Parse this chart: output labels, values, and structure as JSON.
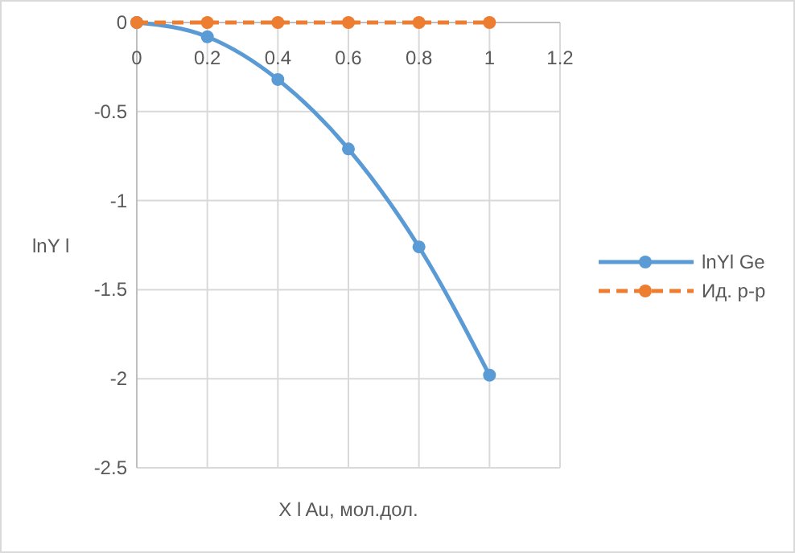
{
  "chart_data": {
    "type": "line",
    "xlabel": "X l Au, мол.дол.",
    "ylabel": "lnY l",
    "x": [
      0,
      0.2,
      0.4,
      0.6,
      0.8,
      1
    ],
    "series": [
      {
        "name": "lnYl Ge",
        "color": "#5b9bd5",
        "values": [
          0,
          -0.08,
          -0.32,
          -0.71,
          -1.26,
          -1.98
        ],
        "line_style": "solid"
      },
      {
        "name": "Ид. р-р",
        "color": "#ed7d31",
        "values": [
          0,
          0,
          0,
          0,
          0,
          0
        ],
        "line_style": "dashed"
      }
    ],
    "xlim": [
      0,
      1.2
    ],
    "xticks": [
      0,
      0.2,
      0.4,
      0.6,
      0.8,
      1,
      1.2
    ],
    "ylim": [
      -2.5,
      0
    ],
    "yticks": [
      0,
      -0.5,
      -1,
      -1.5,
      -2,
      -2.5
    ],
    "grid": true,
    "legend": "right",
    "marker": "circle"
  }
}
